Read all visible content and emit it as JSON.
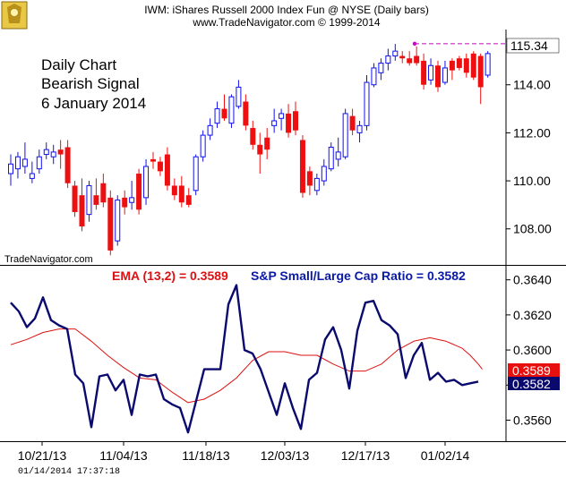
{
  "header": {
    "title": "IWM:  iShares Russell 2000 Index Fun @ NYSE  (Daily bars)",
    "copyright": "www.TradeNavigator.com © 1999-2014"
  },
  "annotation": [
    "Daily Chart",
    "Bearish Signal",
    "6 January 2014"
  ],
  "watermark": "TradeNavigator.com",
  "timestamp": "01/14/2014  17:37:18",
  "colors": {
    "up": "#1010ee",
    "down": "#ee1010",
    "ratio_line": "#0a0a6e",
    "ema_line": "#dd1111",
    "last_price_bg": "#ffffff",
    "high_marker": "#cc00cc"
  },
  "chart_data": [
    {
      "type": "candlestick",
      "title": "IWM",
      "ylim": [
        106.5,
        116.3
      ],
      "yticks": [
        "108.00",
        "110.00",
        "112.00",
        "114.00"
      ],
      "last_price_label": "115.34",
      "high_label": "115.71",
      "x_labels": [
        "10/21/13",
        "11/04/13",
        "11/18/13",
        "12/03/13",
        "12/17/13",
        "01/02/14"
      ],
      "bars": [
        {
          "o": 110.3,
          "h": 111.1,
          "l": 109.8,
          "c": 110.7
        },
        {
          "o": 110.5,
          "h": 111.2,
          "l": 110.1,
          "c": 111.0
        },
        {
          "o": 110.6,
          "h": 111.6,
          "l": 110.3,
          "c": 110.9
        },
        {
          "o": 110.1,
          "h": 110.8,
          "l": 109.9,
          "c": 110.3
        },
        {
          "o": 110.5,
          "h": 111.3,
          "l": 110.3,
          "c": 111.0
        },
        {
          "o": 111.1,
          "h": 111.6,
          "l": 110.9,
          "c": 111.3
        },
        {
          "o": 111.0,
          "h": 111.5,
          "l": 110.7,
          "c": 111.2
        },
        {
          "o": 111.3,
          "h": 111.7,
          "l": 110.5,
          "c": 111.1
        },
        {
          "o": 111.4,
          "h": 111.7,
          "l": 109.7,
          "c": 109.9
        },
        {
          "o": 109.8,
          "h": 110.0,
          "l": 108.5,
          "c": 108.7
        },
        {
          "o": 109.4,
          "h": 110.1,
          "l": 107.9,
          "c": 108.1
        },
        {
          "o": 108.6,
          "h": 110.0,
          "l": 108.3,
          "c": 109.8
        },
        {
          "o": 109.4,
          "h": 110.1,
          "l": 108.8,
          "c": 109.0
        },
        {
          "o": 109.9,
          "h": 110.3,
          "l": 108.9,
          "c": 109.1
        },
        {
          "o": 109.3,
          "h": 109.6,
          "l": 106.9,
          "c": 107.1
        },
        {
          "o": 107.5,
          "h": 109.4,
          "l": 107.3,
          "c": 109.2
        },
        {
          "o": 109.3,
          "h": 109.6,
          "l": 108.6,
          "c": 108.9
        },
        {
          "o": 109.1,
          "h": 110.0,
          "l": 108.8,
          "c": 109.3
        },
        {
          "o": 110.3,
          "h": 110.5,
          "l": 108.6,
          "c": 108.8
        },
        {
          "o": 109.3,
          "h": 110.9,
          "l": 109.0,
          "c": 110.6
        },
        {
          "o": 110.9,
          "h": 111.2,
          "l": 110.5,
          "c": 110.8
        },
        {
          "o": 110.8,
          "h": 111.0,
          "l": 110.2,
          "c": 110.4
        },
        {
          "o": 111.1,
          "h": 111.4,
          "l": 109.6,
          "c": 109.8
        },
        {
          "o": 109.8,
          "h": 110.1,
          "l": 109.2,
          "c": 109.4
        },
        {
          "o": 109.8,
          "h": 110.2,
          "l": 108.9,
          "c": 109.1
        },
        {
          "o": 109.4,
          "h": 109.7,
          "l": 108.9,
          "c": 109.0
        },
        {
          "o": 109.6,
          "h": 111.1,
          "l": 109.4,
          "c": 111.0
        },
        {
          "o": 111.0,
          "h": 112.1,
          "l": 110.8,
          "c": 111.9
        },
        {
          "o": 111.9,
          "h": 112.6,
          "l": 111.7,
          "c": 112.3
        },
        {
          "o": 112.4,
          "h": 113.3,
          "l": 112.2,
          "c": 113.0
        },
        {
          "o": 113.0,
          "h": 113.6,
          "l": 112.5,
          "c": 112.6
        },
        {
          "o": 112.4,
          "h": 113.6,
          "l": 112.2,
          "c": 113.5
        },
        {
          "o": 113.1,
          "h": 114.2,
          "l": 113.0,
          "c": 113.9
        },
        {
          "o": 113.3,
          "h": 113.6,
          "l": 112.1,
          "c": 112.3
        },
        {
          "o": 112.2,
          "h": 112.5,
          "l": 111.3,
          "c": 111.5
        },
        {
          "o": 111.5,
          "h": 112.0,
          "l": 110.3,
          "c": 111.1
        },
        {
          "o": 111.8,
          "h": 112.2,
          "l": 110.9,
          "c": 111.3
        },
        {
          "o": 112.3,
          "h": 113.0,
          "l": 112.0,
          "c": 112.5
        },
        {
          "o": 112.6,
          "h": 113.0,
          "l": 112.1,
          "c": 112.8
        },
        {
          "o": 112.8,
          "h": 113.2,
          "l": 111.8,
          "c": 112.0
        },
        {
          "o": 112.9,
          "h": 113.3,
          "l": 111.9,
          "c": 112.1
        },
        {
          "o": 111.7,
          "h": 111.9,
          "l": 109.3,
          "c": 109.5
        },
        {
          "o": 110.4,
          "h": 110.6,
          "l": 109.4,
          "c": 109.8
        },
        {
          "o": 109.6,
          "h": 110.3,
          "l": 109.4,
          "c": 110.1
        },
        {
          "o": 110.0,
          "h": 110.9,
          "l": 109.8,
          "c": 110.6
        },
        {
          "o": 110.5,
          "h": 111.6,
          "l": 110.4,
          "c": 111.4
        },
        {
          "o": 110.9,
          "h": 111.8,
          "l": 110.6,
          "c": 111.2
        },
        {
          "o": 111.0,
          "h": 113.0,
          "l": 110.9,
          "c": 112.8
        },
        {
          "o": 112.7,
          "h": 113.0,
          "l": 111.9,
          "c": 112.1
        },
        {
          "o": 112.0,
          "h": 112.5,
          "l": 111.6,
          "c": 112.3
        },
        {
          "o": 112.3,
          "h": 114.4,
          "l": 112.1,
          "c": 114.1
        },
        {
          "o": 114.0,
          "h": 114.9,
          "l": 113.9,
          "c": 114.7
        },
        {
          "o": 114.5,
          "h": 115.1,
          "l": 114.2,
          "c": 114.9
        },
        {
          "o": 114.9,
          "h": 115.5,
          "l": 114.6,
          "c": 115.2
        },
        {
          "o": 115.2,
          "h": 115.7,
          "l": 115.0,
          "c": 115.4
        },
        {
          "o": 115.2,
          "h": 115.4,
          "l": 114.9,
          "c": 115.1
        },
        {
          "o": 115.1,
          "h": 115.4,
          "l": 114.8,
          "c": 114.9
        },
        {
          "o": 115.2,
          "h": 115.6,
          "l": 114.8,
          "c": 114.9
        },
        {
          "o": 115.0,
          "h": 115.3,
          "l": 113.8,
          "c": 114.0
        },
        {
          "o": 114.2,
          "h": 115.1,
          "l": 114.0,
          "c": 114.8
        },
        {
          "o": 114.8,
          "h": 115.0,
          "l": 113.7,
          "c": 113.9
        },
        {
          "o": 114.1,
          "h": 115.0,
          "l": 114.0,
          "c": 114.7
        },
        {
          "o": 115.0,
          "h": 115.1,
          "l": 114.2,
          "c": 114.6
        },
        {
          "o": 115.1,
          "h": 115.2,
          "l": 114.6,
          "c": 114.7
        },
        {
          "o": 115.1,
          "h": 115.3,
          "l": 114.3,
          "c": 114.5
        },
        {
          "o": 115.3,
          "h": 115.4,
          "l": 114.2,
          "c": 114.3
        },
        {
          "o": 115.2,
          "h": 115.3,
          "l": 113.2,
          "c": 113.9
        },
        {
          "o": 114.4,
          "h": 115.4,
          "l": 114.3,
          "c": 115.3
        }
      ]
    },
    {
      "type": "line",
      "title_left": "EMA (13,2) = 0.3589",
      "title_right": "S&P Small/Large Cap Ratio = 0.3582",
      "ylim": [
        0.3548,
        0.3648
      ],
      "yticks": [
        "0.3560",
        "0.3580",
        "0.3600",
        "0.3620",
        "0.3640"
      ],
      "last_labels": [
        "0.3589",
        "0.3582"
      ],
      "x_labels": [
        "10/21/13",
        "11/04/13",
        "11/18/13",
        "12/03/13",
        "12/17/13",
        "01/02/14"
      ],
      "series": [
        {
          "name": "S&P Small/Large Cap Ratio",
          "values": [
            0.3627,
            0.3622,
            0.3613,
            0.3618,
            0.363,
            0.3617,
            0.3614,
            0.3612,
            0.3586,
            0.3581,
            0.3556,
            0.3585,
            0.3586,
            0.3577,
            0.3583,
            0.3563,
            0.3586,
            0.3585,
            0.3586,
            0.3572,
            0.3569,
            0.3567,
            0.3553,
            0.3571,
            0.3589,
            0.3589,
            0.3589,
            0.3626,
            0.3637,
            0.36,
            0.3598,
            0.3589,
            0.3576,
            0.3563,
            0.3581,
            0.3567,
            0.3555,
            0.3583,
            0.3587,
            0.3606,
            0.3613,
            0.36,
            0.3578,
            0.3611,
            0.3627,
            0.3628,
            0.3617,
            0.3614,
            0.3609,
            0.3584,
            0.3597,
            0.3604,
            0.3583,
            0.3587,
            0.3582,
            0.3583,
            0.358,
            0.3581,
            0.3582
          ],
          "x_index": [
            0,
            2,
            4,
            6,
            8,
            10,
            12,
            14,
            16,
            18,
            20,
            22,
            24,
            26,
            28,
            30,
            32,
            34,
            36,
            38,
            40,
            42,
            44,
            46,
            48,
            50,
            52,
            54,
            56,
            58,
            60,
            62,
            64,
            66,
            68,
            70,
            72,
            74,
            76,
            78,
            80,
            82,
            84,
            86,
            88,
            90,
            92,
            94,
            96,
            98,
            100,
            102,
            104,
            106,
            108,
            110,
            112,
            114,
            116
          ]
        },
        {
          "name": "EMA (13,2)",
          "values": [
            0.3603,
            0.3606,
            0.361,
            0.3612,
            0.3612,
            0.3605,
            0.3597,
            0.359,
            0.3584,
            0.3583,
            0.3576,
            0.357,
            0.3572,
            0.3577,
            0.3584,
            0.3594,
            0.3599,
            0.3599,
            0.3597,
            0.3597,
            0.3592,
            0.3588,
            0.3588,
            0.3592,
            0.36,
            0.3605,
            0.3607,
            0.3605,
            0.3601,
            0.3597,
            0.3592,
            0.3589
          ],
          "x_index": [
            0,
            4,
            8,
            12,
            16,
            20,
            24,
            28,
            32,
            36,
            40,
            44,
            48,
            52,
            56,
            60,
            64,
            68,
            72,
            76,
            80,
            84,
            88,
            92,
            96,
            100,
            104,
            108,
            112,
            114,
            116,
            117
          ]
        }
      ]
    }
  ]
}
